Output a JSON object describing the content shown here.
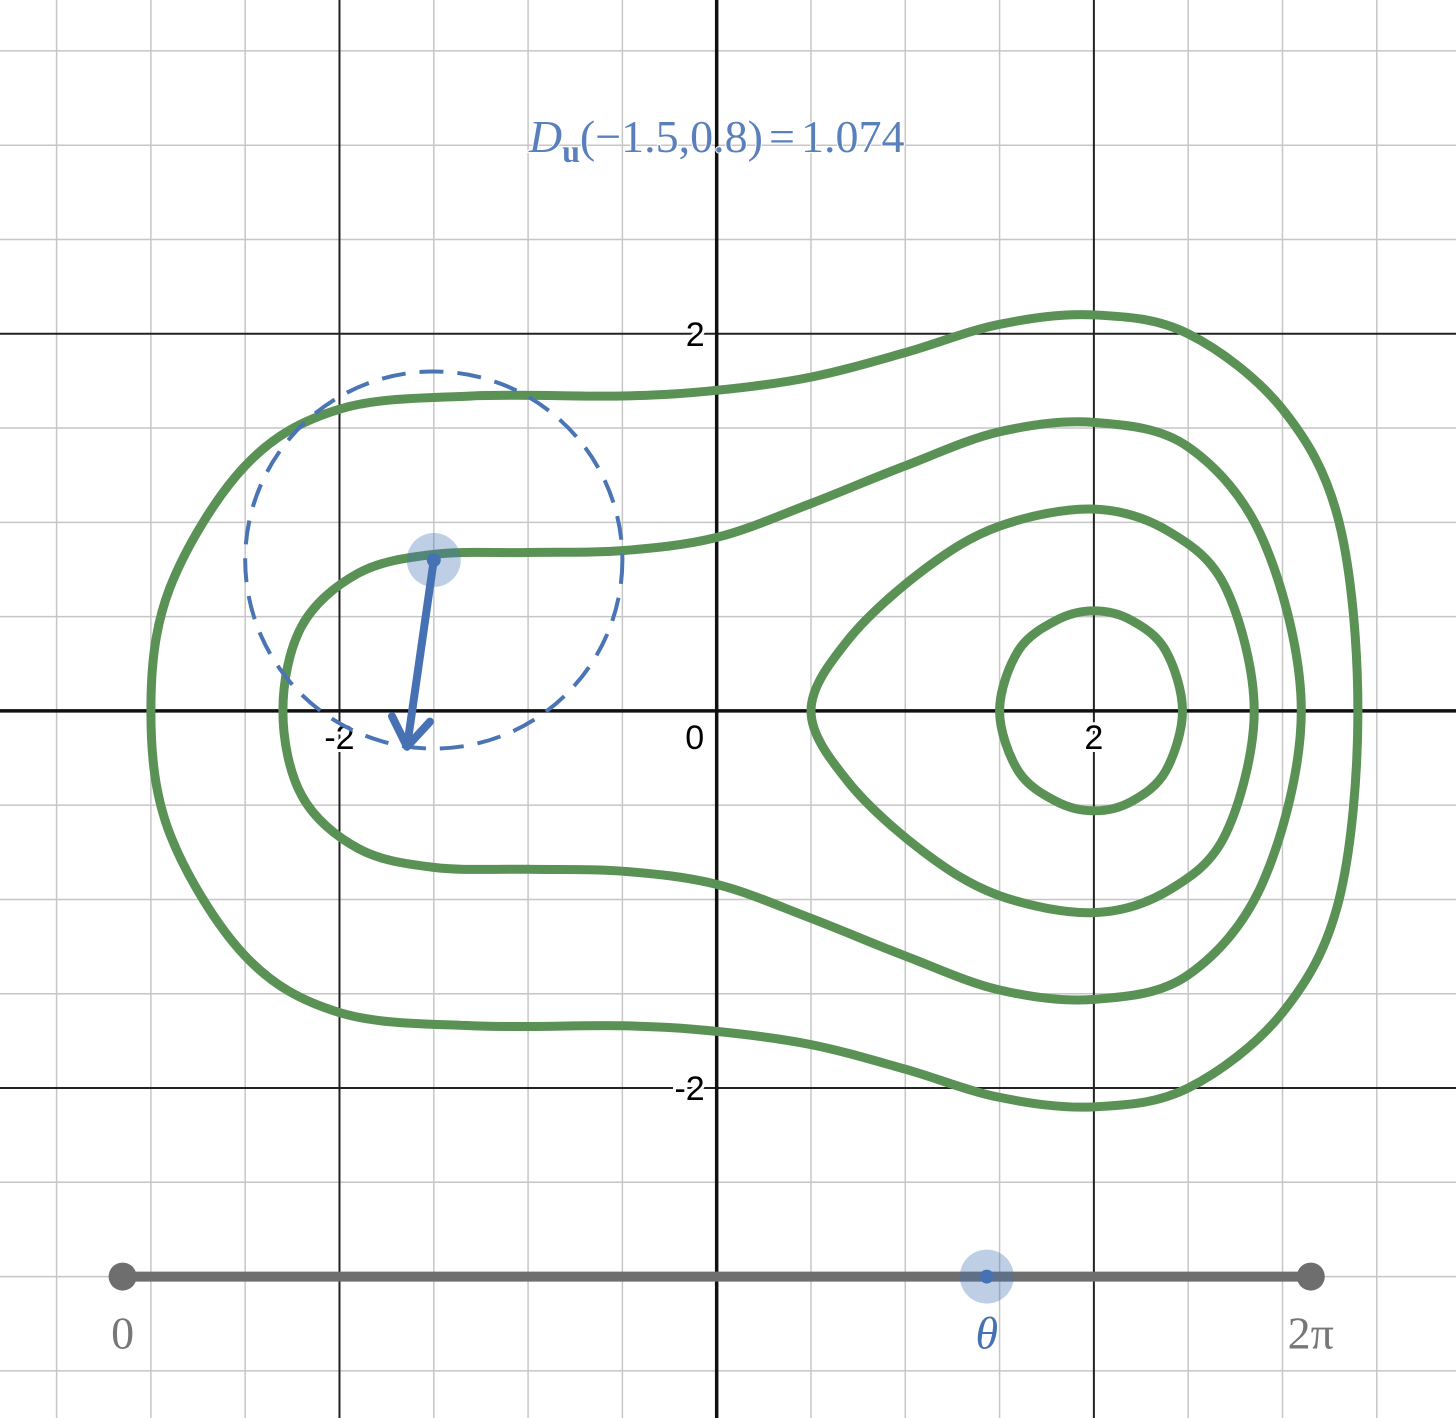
{
  "chart_data": {
    "type": "contour",
    "xlim": [
      -3.8,
      3.92
    ],
    "ylim": [
      -3.75,
      3.77
    ],
    "grid": true,
    "minor_grid_step": 0.5,
    "major_grid_step": 2,
    "x_ticks": [
      {
        "v": -2,
        "label": "-2"
      },
      {
        "v": 0,
        "label": "0"
      },
      {
        "v": 2,
        "label": "2"
      }
    ],
    "y_ticks": [
      {
        "v": 2,
        "label": "2"
      },
      {
        "v": -2,
        "label": "-2"
      }
    ],
    "formula": {
      "D": "D",
      "sub": "u",
      "args": "(−1.5,0.8)",
      "eq": "=",
      "value": "1.074"
    },
    "point": [
      -1.5,
      0.8
    ],
    "direction_angle": 4.57,
    "circle_radius": 1.0,
    "contours": [
      {
        "name": "level-1",
        "points": [
          [
            -3,
            0
          ],
          [
            -2.9,
            0.65
          ],
          [
            -2.5,
            1.3
          ],
          [
            -2,
            1.6
          ],
          [
            -1.3,
            1.67
          ],
          [
            -0.5,
            1.67
          ],
          [
            0,
            1.7
          ],
          [
            0.5,
            1.77
          ],
          [
            1,
            1.9
          ],
          [
            1.5,
            2.05
          ],
          [
            2,
            2.1
          ],
          [
            2.5,
            2.0
          ],
          [
            3,
            1.6
          ],
          [
            3.3,
            1.0
          ],
          [
            3.4,
            0
          ],
          [
            3.3,
            -1.0
          ],
          [
            3,
            -1.6
          ],
          [
            2.5,
            -2.0
          ],
          [
            2,
            -2.1
          ],
          [
            1.5,
            -2.05
          ],
          [
            1,
            -1.9
          ],
          [
            0.5,
            -1.77
          ],
          [
            0,
            -1.7
          ],
          [
            -0.5,
            -1.67
          ],
          [
            -1.3,
            -1.67
          ],
          [
            -2,
            -1.6
          ],
          [
            -2.5,
            -1.3
          ],
          [
            -2.9,
            -0.65
          ]
        ]
      },
      {
        "name": "level-2",
        "points": [
          [
            -2.3,
            0
          ],
          [
            -2.2,
            0.45
          ],
          [
            -1.9,
            0.73
          ],
          [
            -1.5,
            0.83
          ],
          [
            -1,
            0.84
          ],
          [
            -0.5,
            0.85
          ],
          [
            0,
            0.92
          ],
          [
            0.5,
            1.1
          ],
          [
            1,
            1.3
          ],
          [
            1.5,
            1.48
          ],
          [
            2,
            1.53
          ],
          [
            2.5,
            1.4
          ],
          [
            2.9,
            0.9
          ],
          [
            3.1,
            0
          ],
          [
            2.9,
            -0.9
          ],
          [
            2.5,
            -1.4
          ],
          [
            2,
            -1.53
          ],
          [
            1.5,
            -1.48
          ],
          [
            1,
            -1.3
          ],
          [
            0.5,
            -1.1
          ],
          [
            0,
            -0.92
          ],
          [
            -0.5,
            -0.85
          ],
          [
            -1,
            -0.84
          ],
          [
            -1.5,
            -0.83
          ],
          [
            -1.9,
            -0.73
          ],
          [
            -2.2,
            -0.45
          ]
        ]
      },
      {
        "name": "level-3",
        "points": [
          [
            0.5,
            0
          ],
          [
            0.7,
            0.38
          ],
          [
            1.1,
            0.75
          ],
          [
            1.5,
            0.98
          ],
          [
            2,
            1.07
          ],
          [
            2.4,
            0.95
          ],
          [
            2.7,
            0.65
          ],
          [
            2.85,
            0
          ],
          [
            2.7,
            -0.65
          ],
          [
            2.4,
            -0.95
          ],
          [
            2,
            -1.07
          ],
          [
            1.5,
            -0.98
          ],
          [
            1.1,
            -0.75
          ],
          [
            0.7,
            -0.38
          ]
        ]
      },
      {
        "name": "level-4",
        "points": [
          [
            1.5,
            0
          ],
          [
            1.6,
            0.32
          ],
          [
            1.8,
            0.48
          ],
          [
            2,
            0.53
          ],
          [
            2.2,
            0.48
          ],
          [
            2.38,
            0.32
          ],
          [
            2.47,
            0
          ],
          [
            2.38,
            -0.32
          ],
          [
            2.2,
            -0.48
          ],
          [
            2,
            -0.53
          ],
          [
            1.8,
            -0.48
          ],
          [
            1.6,
            -0.32
          ]
        ]
      }
    ],
    "slider": {
      "min_label": "0",
      "max_label": "2π",
      "var_label": "θ",
      "y": -3.0,
      "x_start": -3.15,
      "x_end": 3.15,
      "value": 4.57,
      "max": 6.2832
    },
    "colors": {
      "contour": "#5a9155",
      "vector": "#4672b4",
      "circle": "#4a74b4",
      "title": "#5a80bc",
      "slider": "#6e6e6e",
      "slider_label": "#777777",
      "minor_grid": "#c6c6c6",
      "major_grid": "#222222",
      "axis": "#111111"
    }
  }
}
